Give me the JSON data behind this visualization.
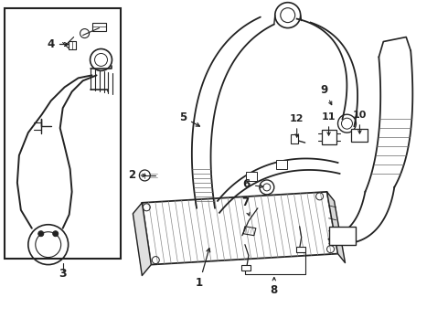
{
  "bg_color": "#ffffff",
  "line_color": "#222222",
  "figure_width": 4.9,
  "figure_height": 3.6,
  "dpi": 100,
  "lw": 1.0,
  "part_label_fontsize": 8.5
}
